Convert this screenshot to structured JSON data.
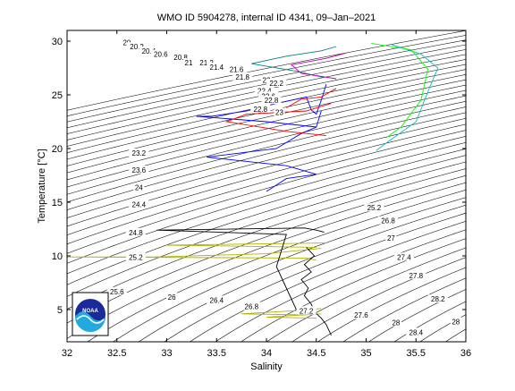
{
  "chart_data": {
    "type": "line",
    "title": "WMO ID 5904278, internal ID 4341, 09–Jan–2021",
    "xlabel": "Salinity",
    "ylabel": "Temperature [°C]",
    "xlim": [
      32,
      36
    ],
    "ylim": [
      2,
      31
    ],
    "xticks": [
      32,
      32.5,
      33,
      33.5,
      34,
      34.5,
      35,
      35.5,
      36
    ],
    "xtick_labels": [
      "32",
      "32.5",
      "33",
      "33.5",
      "34",
      "34.5",
      "35",
      "35.5",
      "36"
    ],
    "yticks": [
      5,
      10,
      15,
      20,
      25,
      30
    ],
    "ytick_labels": [
      "5",
      "10",
      "15",
      "20",
      "25",
      "30"
    ],
    "grid": false,
    "density_contours": {
      "levels": [
        20,
        20.2,
        20.4,
        20.6,
        20.8,
        21,
        21.2,
        21.4,
        21.6,
        21.8,
        22,
        22.2,
        22.4,
        22.6,
        22.8,
        23,
        23.2,
        23.4,
        23.6,
        23.8,
        24,
        24.2,
        24.4,
        24.6,
        24.8,
        25,
        25.2,
        25.4,
        25.6,
        25.8,
        26,
        26.2,
        26.4,
        26.6,
        26.8,
        27,
        27.2,
        27.4,
        27.6,
        27.8,
        28,
        28.2,
        28.4,
        28.6,
        28.8
      ],
      "labels": [
        {
          "text": "20",
          "s": 32.6,
          "t": 29.8
        },
        {
          "text": "20.2",
          "s": 32.7,
          "t": 29.4
        },
        {
          "text": "20.4",
          "s": 32.82,
          "t": 29.0
        },
        {
          "text": "20.6",
          "s": 32.94,
          "t": 28.7
        },
        {
          "text": "20.8",
          "s": 33.14,
          "t": 28.4
        },
        {
          "text": "21",
          "s": 33.22,
          "t": 27.9
        },
        {
          "text": "21.2",
          "s": 33.4,
          "t": 27.9
        },
        {
          "text": "21.4",
          "s": 33.5,
          "t": 27.5
        },
        {
          "text": "21.6",
          "s": 33.7,
          "t": 27.3
        },
        {
          "text": "21.8",
          "s": 33.76,
          "t": 26.6
        },
        {
          "text": "22",
          "s": 34.0,
          "t": 26.3
        },
        {
          "text": "22.2",
          "s": 34.1,
          "t": 26.0
        },
        {
          "text": "22.4",
          "s": 33.98,
          "t": 25.3
        },
        {
          "text": "22.6",
          "s": 34.02,
          "t": 24.8
        },
        {
          "text": "22.8",
          "s": 34.05,
          "t": 24.4
        },
        {
          "text": "22.8",
          "s": 33.94,
          "t": 23.6
        },
        {
          "text": "23",
          "s": 34.13,
          "t": 23.3
        },
        {
          "text": "23.2",
          "s": 32.72,
          "t": 19.5
        },
        {
          "text": "23.6",
          "s": 32.72,
          "t": 17.9
        },
        {
          "text": "24",
          "s": 32.72,
          "t": 16.3
        },
        {
          "text": "24.4",
          "s": 32.72,
          "t": 14.7
        },
        {
          "text": "24.8",
          "s": 32.69,
          "t": 12.1
        },
        {
          "text": "25.2",
          "s": 32.69,
          "t": 9.8
        },
        {
          "text": "25.6",
          "s": 32.5,
          "t": 6.6
        },
        {
          "text": "26",
          "s": 33.05,
          "t": 6.1
        },
        {
          "text": "26.4",
          "s": 33.5,
          "t": 5.8
        },
        {
          "text": "26.8",
          "s": 33.85,
          "t": 5.2
        },
        {
          "text": "27.2",
          "s": 34.4,
          "t": 4.8
        },
        {
          "text": "27.6",
          "s": 34.95,
          "t": 4.4
        },
        {
          "text": "28",
          "s": 35.3,
          "t": 3.7
        },
        {
          "text": "28.4",
          "s": 35.5,
          "t": 2.8
        },
        {
          "text": "28",
          "s": 35.9,
          "t": 3.8
        },
        {
          "text": "25.2",
          "s": 35.08,
          "t": 14.4
        },
        {
          "text": "26.8",
          "s": 35.22,
          "t": 13.2
        },
        {
          "text": "27",
          "s": 35.25,
          "t": 11.6
        },
        {
          "text": "27.4",
          "s": 35.38,
          "t": 9.8
        },
        {
          "text": "27.8",
          "s": 35.5,
          "t": 8.1
        },
        {
          "text": "28.2",
          "s": 35.72,
          "t": 5.9
        }
      ]
    },
    "series": [
      {
        "color": "#0000ff",
        "s": [
          34.6,
          34.55,
          34.5,
          34.45,
          34.4,
          34.1,
          33.8,
          33.45,
          33.3,
          34.0,
          34.5
        ],
        "t": [
          26.0,
          24.5,
          23.2,
          23.6,
          24.8,
          24.2,
          23.5,
          23.0,
          23.0,
          22.5,
          22.0
        ]
      },
      {
        "color": "#0000ff",
        "s": [
          34.55,
          34.5,
          34.35,
          34.1,
          33.4,
          34.2,
          34.5,
          34.2,
          34.0
        ],
        "t": [
          23.5,
          22.0,
          21.4,
          20.0,
          19.2,
          18.4,
          17.6,
          17.2,
          16.0
        ]
      },
      {
        "color": "#ff0000",
        "s": [
          34.65,
          34.4,
          33.8,
          33.6,
          34.2,
          34.6
        ],
        "t": [
          24.2,
          23.5,
          23.2,
          22.5,
          21.6,
          21.2
        ]
      },
      {
        "color": "#ff0000",
        "s": [
          34.7,
          34.55,
          34.35,
          34.2
        ],
        "t": [
          25.6,
          24.8,
          24.6,
          23.8
        ]
      },
      {
        "color": "#b2b200",
        "s": [
          34.55,
          34.0,
          32.9,
          32.0,
          34.4,
          34.5
        ],
        "t": [
          10.7,
          10.2,
          9.9,
          9.9,
          9.8,
          9.6
        ]
      },
      {
        "color": "#b2b200",
        "s": [
          34.6,
          33.0,
          34.5
        ],
        "t": [
          11.2,
          11.0,
          10.8
        ]
      },
      {
        "color": "#b2b200",
        "s": [
          34.55,
          34.3,
          33.75,
          34.4
        ],
        "t": [
          5.1,
          4.9,
          4.6,
          4.5
        ]
      },
      {
        "color": "#b2b200",
        "s": [
          34.55,
          34.0,
          34.5
        ],
        "t": [
          4.6,
          4.3,
          4.2
        ]
      },
      {
        "color": "#000000",
        "s": [
          34.58,
          34.5,
          34.38,
          32.9,
          34.2,
          34.1,
          34.2,
          34.3
        ],
        "t": [
          12.2,
          12.4,
          12.6,
          12.4,
          12.0,
          9.0,
          7.0,
          5.0
        ]
      },
      {
        "color": "#000000",
        "s": [
          34.4,
          34.48,
          34.38,
          34.45,
          34.35,
          34.42,
          34.38,
          34.45,
          34.48,
          34.55,
          34.6,
          34.62,
          34.65
        ],
        "t": [
          10.8,
          10.0,
          9.2,
          8.5,
          7.8,
          7.0,
          6.3,
          5.5,
          4.8,
          4.2,
          3.6,
          3.2,
          2.6
        ]
      },
      {
        "color": "#008080",
        "s": [
          34.7,
          34.55,
          34.2,
          33.85,
          34.3,
          34.58
        ],
        "t": [
          29.5,
          29.1,
          28.6,
          27.9,
          27.2,
          26.6
        ]
      },
      {
        "color": "#bf00bf",
        "s": [
          34.8,
          34.6,
          34.25,
          34.35,
          34.7
        ],
        "t": [
          28.9,
          28.4,
          27.8,
          27.0,
          26.5
        ]
      },
      {
        "color": "#00bfbf",
        "s": [
          35.25,
          35.55,
          35.72,
          35.65,
          35.5,
          35.2,
          35.1
        ],
        "t": [
          29.7,
          28.8,
          27.5,
          26.0,
          22.5,
          20.5,
          19.8
        ]
      },
      {
        "color": "#00ff00",
        "s": [
          35.05,
          35.45,
          35.62,
          35.55,
          35.35,
          35.2
        ],
        "t": [
          29.8,
          29.2,
          27.4,
          24.5,
          22.0,
          21.0
        ]
      }
    ]
  },
  "logo": {
    "text": "NOAA"
  }
}
